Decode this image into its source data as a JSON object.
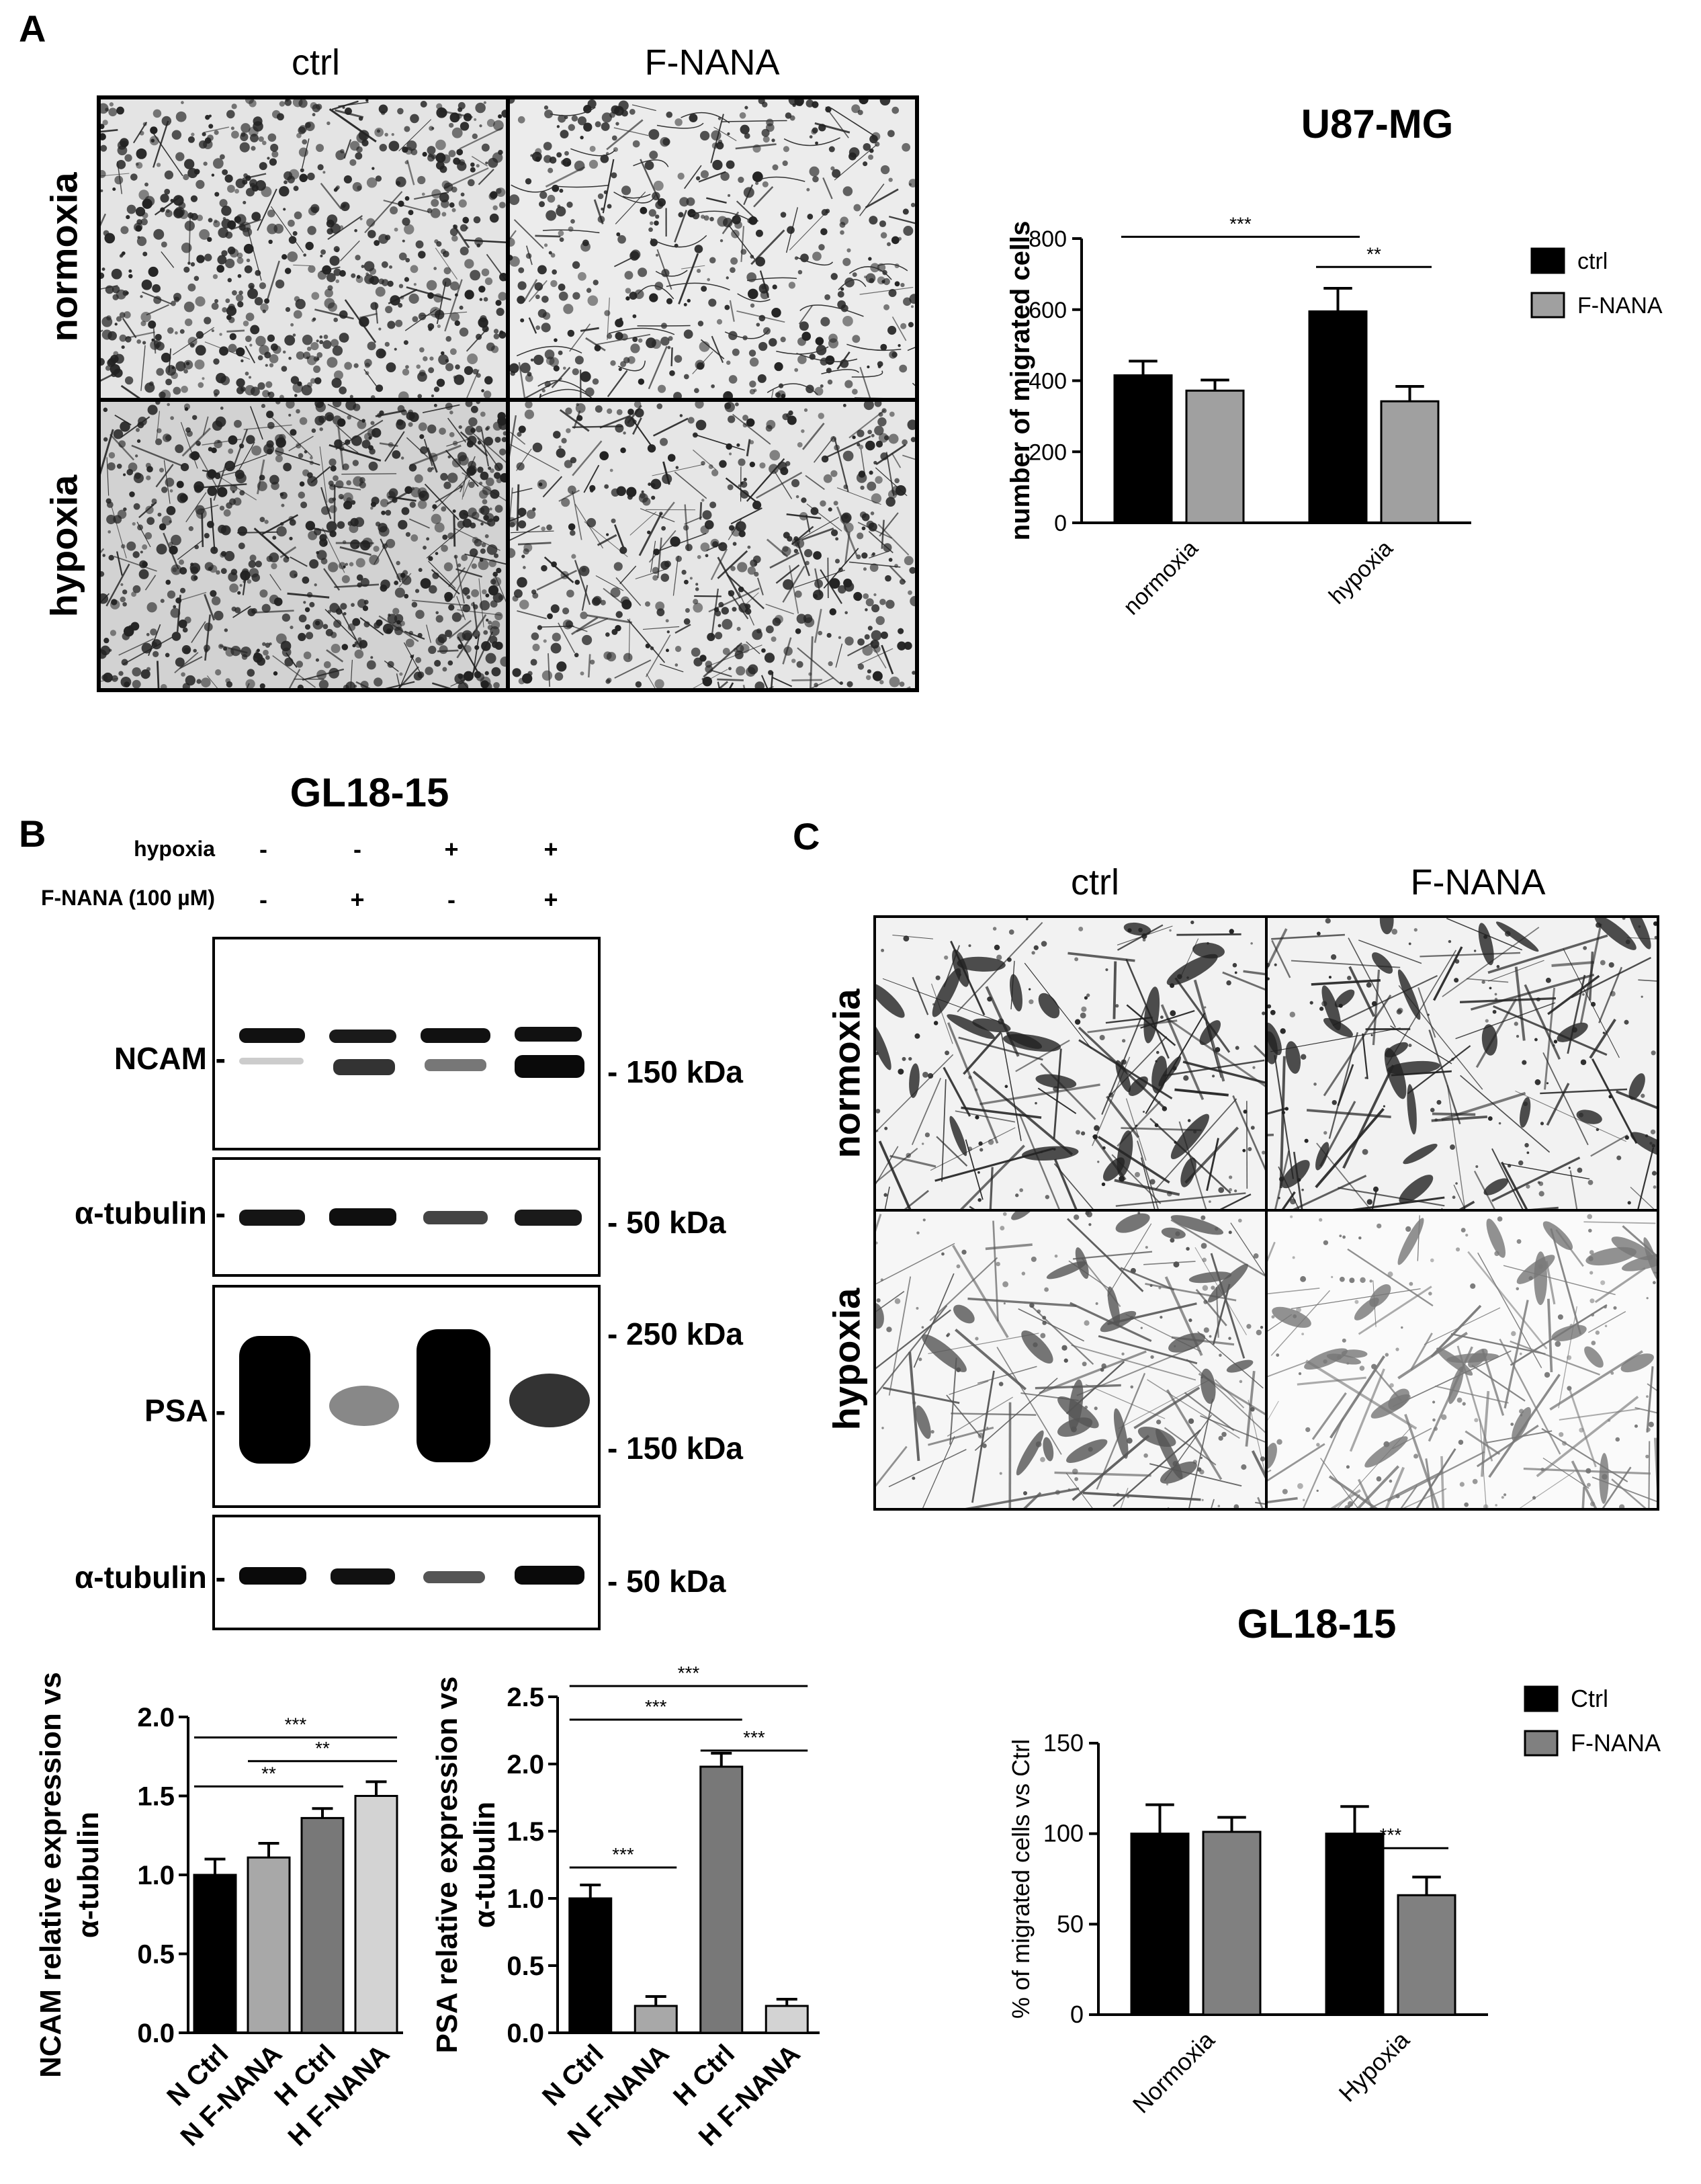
{
  "panel_a": {
    "letter": "A",
    "columns": [
      "ctrl",
      "F-NANA"
    ],
    "rows": [
      "normoxia",
      "hypoxia"
    ]
  },
  "panel_b": {
    "letter": "B",
    "title": "GL18-15",
    "conditions": [
      {
        "label": "hypoxia",
        "signs": [
          "-",
          "-",
          "+",
          "+"
        ]
      },
      {
        "label": "F-NANA (100 µM)",
        "signs": [
          "-",
          "+",
          "-",
          "+"
        ]
      }
    ],
    "blots": [
      {
        "protein": "NCAM -",
        "markers": [
          "- 150 kDa"
        ]
      },
      {
        "protein": "α-tubulin -",
        "markers": [
          "- 50 kDa"
        ]
      },
      {
        "protein": "PSA -",
        "markers": [
          "- 250 kDa",
          "- 150 kDa"
        ]
      },
      {
        "protein": "α-tubulin -",
        "markers": [
          "- 50 kDa"
        ]
      }
    ]
  },
  "panel_c": {
    "letter": "C",
    "columns": [
      "ctrl",
      "F-NANA"
    ],
    "rows": [
      "normoxia",
      "hypoxia"
    ]
  },
  "chart_data": [
    {
      "id": "u87",
      "type": "bar",
      "title": "U87-MG",
      "ylabel": "number of migrated cells",
      "categories": [
        "normoxia",
        "hypoxia"
      ],
      "series": [
        {
          "name": "ctrl",
          "color": "#000000",
          "values": [
            415,
            595
          ],
          "errors": [
            40,
            65
          ]
        },
        {
          "name": "F-NANA",
          "color": "#a0a0a0",
          "values": [
            372,
            342
          ],
          "errors": [
            30,
            42
          ]
        }
      ],
      "ylim": [
        0,
        800
      ],
      "yticks": [
        "0",
        "200",
        "400",
        "600",
        "800"
      ],
      "significance": [
        {
          "label": "***",
          "from": [
            0,
            0
          ],
          "to": [
            1,
            0
          ],
          "y": 805
        },
        {
          "label": "**",
          "from": [
            1,
            0
          ],
          "to": [
            1,
            1
          ],
          "y": 720
        }
      ]
    },
    {
      "id": "ncam",
      "type": "bar",
      "ylabel": "NCAM relative expression vs α-tubulin",
      "categories": [
        "N Ctrl",
        "N F-NANA",
        "H Ctrl",
        "H F-NANA"
      ],
      "values": [
        1.0,
        1.11,
        1.36,
        1.5
      ],
      "errors": [
        0.1,
        0.09,
        0.06,
        0.09
      ],
      "colors": [
        "#000000",
        "#a8a8a8",
        "#787878",
        "#d3d3d3"
      ],
      "ylim": [
        0,
        2.0
      ],
      "yticks": [
        "0.0",
        "0.5",
        "1.0",
        "1.5",
        "2.0"
      ],
      "significance": [
        {
          "label": "***",
          "from": 0,
          "to": 3,
          "y": 1.87
        },
        {
          "label": "**",
          "from": 1,
          "to": 3,
          "y": 1.72
        },
        {
          "label": "**",
          "from": 0,
          "to": 2,
          "y": 1.56
        }
      ]
    },
    {
      "id": "psa",
      "type": "bar",
      "ylabel": "PSA relative expression vs α-tubulin",
      "categories": [
        "N Ctrl",
        "N F-NANA",
        "H Ctrl",
        "H F-NANA"
      ],
      "values": [
        1.0,
        0.2,
        1.98,
        0.2
      ],
      "errors": [
        0.1,
        0.07,
        0.1,
        0.05
      ],
      "colors": [
        "#000000",
        "#a8a8a8",
        "#787878",
        "#d3d3d3"
      ],
      "ylim": [
        0,
        2.5
      ],
      "yticks": [
        "0.0",
        "0.5",
        "1.0",
        "1.5",
        "2.0",
        "2.5"
      ],
      "significance": [
        {
          "label": "***",
          "from": 0,
          "to": 3,
          "y": 2.58
        },
        {
          "label": "***",
          "from": 0,
          "to": 2,
          "y": 2.33
        },
        {
          "label": "***",
          "from": 2,
          "to": 3,
          "y": 2.1
        },
        {
          "label": "***",
          "from": 0,
          "to": 1,
          "y": 1.23
        }
      ]
    },
    {
      "id": "gl18",
      "type": "bar",
      "title": "GL18-15",
      "ylabel": "% of migrated cells vs Ctrl",
      "categories": [
        "Normoxia",
        "Hypoxia"
      ],
      "series": [
        {
          "name": "Ctrl",
          "color": "#000000",
          "values": [
            100,
            100
          ],
          "errors": [
            16,
            15
          ]
        },
        {
          "name": "F-NANA",
          "color": "#808080",
          "values": [
            101,
            66
          ],
          "errors": [
            8,
            10
          ]
        }
      ],
      "ylim": [
        0,
        150
      ],
      "yticks": [
        "0",
        "50",
        "100",
        "150"
      ],
      "significance": [
        {
          "label": "***",
          "from": [
            1,
            0
          ],
          "to": [
            1,
            1
          ],
          "y": 92
        }
      ]
    }
  ]
}
